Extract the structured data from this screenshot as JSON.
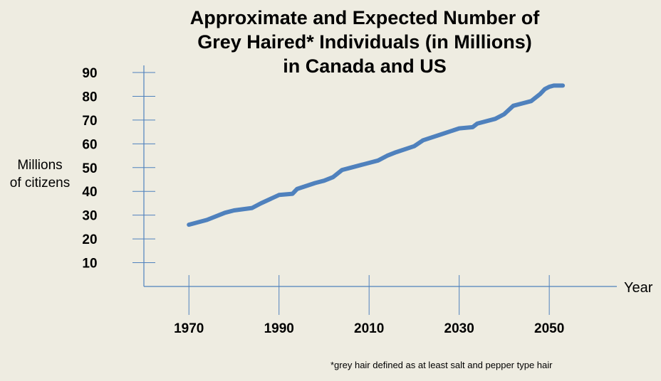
{
  "chart_data": {
    "type": "line",
    "title_lines": [
      "Approximate and Expected Number of",
      "Grey Haired* Individuals (in Millions)",
      "in Canada and US"
    ],
    "ylabel_lines": [
      "Millions",
      "of citizens"
    ],
    "xlabel": "Year",
    "footnote": "*grey hair defined  as at least salt and pepper type hair",
    "y_ticks": [
      10,
      20,
      30,
      40,
      50,
      60,
      70,
      80,
      90
    ],
    "x_ticks": [
      1970,
      1990,
      2010,
      2030,
      2050
    ],
    "xlim": [
      1960,
      2065
    ],
    "ylim": [
      0,
      93
    ],
    "grid": false,
    "series": [
      {
        "color": "#4f81bd",
        "x": [
          1970,
          1974,
          1978,
          1980,
          1984,
          1986,
          1990,
          1993,
          1994,
          1998,
          2000,
          2002,
          2004,
          2006,
          2010,
          2012,
          2014,
          2016,
          2020,
          2022,
          2026,
          2030,
          2033,
          2034,
          2038,
          2040,
          2042,
          2044,
          2046,
          2048,
          2049,
          2050,
          2051,
          2053
        ],
        "y": [
          26,
          28,
          31,
          32,
          33,
          35,
          38.5,
          39,
          41,
          43.5,
          44.5,
          46,
          49,
          50,
          52,
          53,
          55,
          56.5,
          59,
          61.5,
          64,
          66.5,
          67,
          68.5,
          70.5,
          72.5,
          76,
          77,
          78,
          81,
          83,
          84,
          84.5,
          84.5
        ]
      }
    ]
  }
}
